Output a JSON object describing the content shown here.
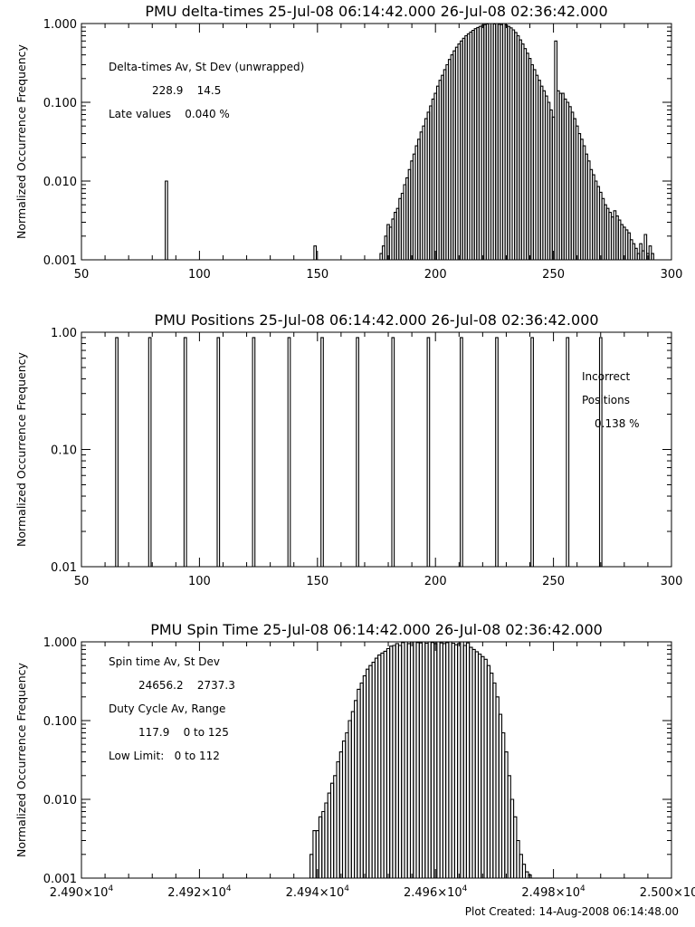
{
  "figure": {
    "footer": "Plot Created: 14-Aug-2008 06:14:48.00"
  },
  "chart_data": [
    {
      "type": "histogram",
      "title": "PMU delta-times 25-Jul-08 06:14:42.000 26-Jul-08 02:36:42.000",
      "xlabel": "",
      "ylabel": "Normalized Occurrence Frequency",
      "xlim": [
        50,
        300
      ],
      "ylim": [
        0.001,
        1.0
      ],
      "yscale": "log",
      "xticks": [
        "50",
        "100",
        "150",
        "200",
        "250",
        "300"
      ],
      "yticks": [
        "0.001",
        "0.010",
        "0.100",
        "1.000"
      ],
      "annotations": [
        "Delta-times Av, St Dev (unwrapped)",
        "228.9    14.5",
        "Late values    0.040 %"
      ],
      "x": [
        86,
        149,
        177,
        178,
        179,
        180,
        181,
        182,
        183,
        184,
        185,
        186,
        187,
        188,
        189,
        190,
        191,
        192,
        193,
        194,
        195,
        196,
        197,
        198,
        199,
        200,
        201,
        202,
        203,
        204,
        205,
        206,
        207,
        208,
        209,
        210,
        211,
        212,
        213,
        214,
        215,
        216,
        217,
        218,
        219,
        220,
        221,
        222,
        223,
        224,
        225,
        226,
        227,
        228,
        229,
        230,
        231,
        232,
        233,
        234,
        235,
        236,
        237,
        238,
        239,
        240,
        241,
        242,
        243,
        244,
        245,
        246,
        247,
        248,
        249,
        250,
        251,
        252,
        253,
        254,
        255,
        256,
        257,
        258,
        259,
        260,
        261,
        262,
        263,
        264,
        265,
        266,
        267,
        268,
        269,
        270,
        271,
        272,
        273,
        274,
        275,
        276,
        277,
        278,
        279,
        280,
        281,
        282,
        283,
        284,
        285,
        286,
        287,
        288,
        289,
        290,
        291,
        292
      ],
      "values": [
        0.01,
        0.0015,
        0.0012,
        0.0015,
        0.002,
        0.0028,
        0.0026,
        0.0033,
        0.004,
        0.0045,
        0.006,
        0.007,
        0.009,
        0.011,
        0.014,
        0.018,
        0.022,
        0.028,
        0.034,
        0.042,
        0.05,
        0.062,
        0.075,
        0.09,
        0.11,
        0.13,
        0.16,
        0.19,
        0.22,
        0.26,
        0.3,
        0.35,
        0.4,
        0.45,
        0.5,
        0.55,
        0.6,
        0.65,
        0.7,
        0.74,
        0.78,
        0.82,
        0.86,
        0.89,
        0.92,
        0.95,
        0.97,
        0.99,
        1.0,
        1.0,
        0.99,
        1.0,
        0.98,
        0.97,
        1.0,
        0.96,
        0.92,
        0.88,
        0.83,
        0.77,
        0.7,
        0.62,
        0.55,
        0.48,
        0.42,
        0.36,
        0.3,
        0.26,
        0.22,
        0.19,
        0.16,
        0.14,
        0.12,
        0.1,
        0.08,
        0.065,
        0.6,
        0.14,
        0.13,
        0.13,
        0.11,
        0.1,
        0.088,
        0.075,
        0.062,
        0.05,
        0.04,
        0.034,
        0.028,
        0.022,
        0.018,
        0.014,
        0.012,
        0.01,
        0.0085,
        0.0072,
        0.006,
        0.005,
        0.0045,
        0.004,
        0.0035,
        0.0042,
        0.0036,
        0.0032,
        0.0028,
        0.0026,
        0.0024,
        0.0022,
        0.0018,
        0.0016,
        0.0014,
        0.0012,
        0.0016,
        0.0013,
        0.0021,
        0.0012,
        0.0015,
        0.0012
      ]
    },
    {
      "type": "histogram",
      "title": "PMU Positions 25-Jul-08 06:14:42.000 26-Jul-08 02:36:42.000",
      "xlabel": "",
      "ylabel": "Normalized Occurrence Frequency",
      "xlim": [
        50,
        300
      ],
      "ylim": [
        0.01,
        1.0
      ],
      "yscale": "log",
      "xticks": [
        "50",
        "100",
        "150",
        "200",
        "250",
        "300"
      ],
      "yticks": [
        "0.01",
        "0.10",
        "1.00"
      ],
      "annotations": [
        "Incorrect",
        "Positions",
        "0.138 %"
      ],
      "x": [
        65,
        79,
        94,
        108,
        123,
        138,
        152,
        167,
        182,
        197,
        211,
        226,
        241,
        256,
        270
      ],
      "values": [
        0.9,
        0.9,
        0.9,
        0.9,
        0.9,
        0.9,
        0.9,
        0.9,
        0.9,
        0.9,
        0.9,
        0.9,
        0.9,
        0.9,
        0.9
      ]
    },
    {
      "type": "histogram",
      "title": "PMU Spin Time 25-Jul-08 06:14:42.000 26-Jul-08 02:36:42.000",
      "xlabel": "",
      "ylabel": "Normalized Occurrence Frequency",
      "xlim": [
        24900,
        25000
      ],
      "ylim": [
        0.001,
        1.0
      ],
      "yscale": "log",
      "xticks": [
        "2.490×10",
        "2.492×10",
        "2.494×10",
        "2.496×10",
        "2.498×10",
        "2.500×10"
      ],
      "xtick_exponent": "4",
      "yticks": [
        "0.001",
        "0.010",
        "0.100",
        "1.000"
      ],
      "annotations": [
        "Spin time Av, St Dev",
        "24656.2    2737.3",
        "Duty Cycle Av, Range",
        "117.9    0 to 125",
        "Low Limit:   0 to 112"
      ],
      "bin_width": 0.5,
      "x": [
        24939.0,
        24939.5,
        24940.0,
        24940.5,
        24941.0,
        24941.5,
        24942.0,
        24942.5,
        24943.0,
        24943.5,
        24944.0,
        24944.5,
        24945.0,
        24945.5,
        24946.0,
        24946.5,
        24947.0,
        24947.5,
        24948.0,
        24948.5,
        24949.0,
        24949.5,
        24950.0,
        24950.5,
        24951.0,
        24951.5,
        24952.0,
        24952.5,
        24953.0,
        24953.5,
        24954.0,
        24954.5,
        24955.0,
        24955.5,
        24956.0,
        24956.5,
        24957.0,
        24957.5,
        24958.0,
        24958.5,
        24959.0,
        24959.5,
        24960.0,
        24960.5,
        24961.0,
        24961.5,
        24962.0,
        24962.5,
        24963.0,
        24963.5,
        24964.0,
        24964.5,
        24965.0,
        24965.5,
        24966.0,
        24966.5,
        24967.0,
        24967.5,
        24968.0,
        24968.5,
        24969.0,
        24969.5,
        24970.0,
        24970.5,
        24971.0,
        24971.5,
        24972.0,
        24972.5,
        24973.0,
        24973.5,
        24974.0,
        24974.5,
        24975.0,
        24975.5,
        24976.0,
        24976.5,
        24977.0,
        24977.5,
        24978.0,
        24978.5,
        24979.0,
        24979.5
      ],
      "values": [
        0.002,
        0.004,
        0.004,
        0.006,
        0.007,
        0.009,
        0.012,
        0.016,
        0.02,
        0.03,
        0.04,
        0.055,
        0.07,
        0.1,
        0.13,
        0.18,
        0.25,
        0.3,
        0.37,
        0.45,
        0.5,
        0.55,
        0.62,
        0.68,
        0.72,
        0.76,
        0.82,
        0.88,
        0.9,
        0.95,
        0.9,
        0.98,
        1.0,
        0.95,
        1.0,
        1.0,
        0.98,
        0.97,
        1.0,
        0.96,
        1.0,
        0.98,
        0.95,
        1.0,
        0.97,
        0.95,
        0.98,
        1.0,
        0.96,
        0.92,
        0.95,
        1.0,
        0.9,
        0.97,
        0.85,
        0.8,
        0.75,
        0.7,
        0.65,
        0.6,
        0.5,
        0.4,
        0.3,
        0.2,
        0.12,
        0.07,
        0.04,
        0.02,
        0.01,
        0.006,
        0.003,
        0.002,
        0.0015,
        0.0012,
        0.0011,
        0.001,
        0.001,
        0.001,
        0.001,
        0.001,
        0.001,
        0.001
      ]
    }
  ]
}
